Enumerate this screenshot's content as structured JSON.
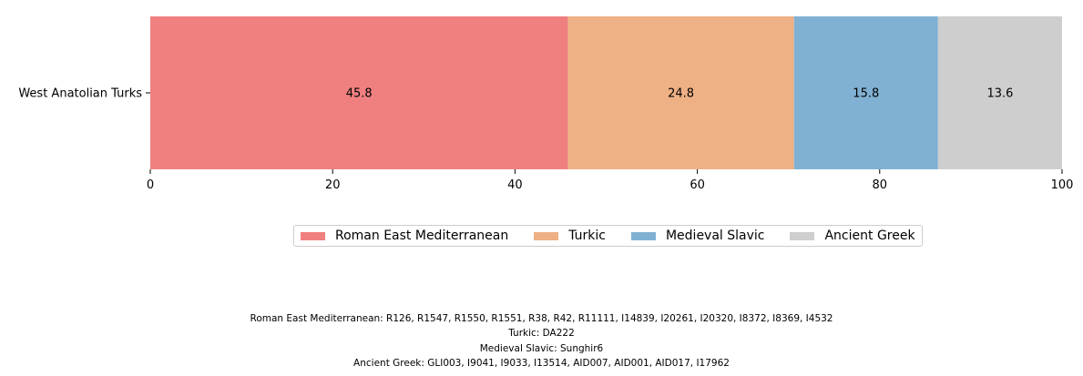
{
  "chart_data": {
    "type": "bar",
    "orientation": "horizontal",
    "stacked": true,
    "categories": [
      "West Anatolian Turks"
    ],
    "series": [
      {
        "name": "Roman East Mediterranean",
        "values": [
          45.8
        ],
        "color": "#f08080"
      },
      {
        "name": "Turkic",
        "values": [
          24.8
        ],
        "color": "#eeb185"
      },
      {
        "name": "Medieval Slavic",
        "values": [
          15.8
        ],
        "color": "#80b1d3"
      },
      {
        "name": "Ancient Greek",
        "values": [
          13.6
        ],
        "color": "#cecece"
      }
    ],
    "data_labels": [
      "45.8",
      "24.8",
      "15.8",
      "13.6"
    ],
    "x_ticks": [
      0,
      20,
      40,
      60,
      80,
      100
    ],
    "xlim": [
      0,
      100
    ],
    "title": "",
    "xlabel": "",
    "ylabel": "",
    "grid": false,
    "legend_position": "bottom-center"
  },
  "footnotes": [
    "Roman East Mediterranean: R126, R1547, R1550, R1551, R38, R42, R11111, I14839, I20261, I20320, I8372, I8369, I4532",
    "Turkic: DA222",
    "Medieval Slavic: Sunghir6",
    "Ancient Greek: GLI003, I9041, I9033, I13514, AID007, AID001, AID017, I17962"
  ]
}
